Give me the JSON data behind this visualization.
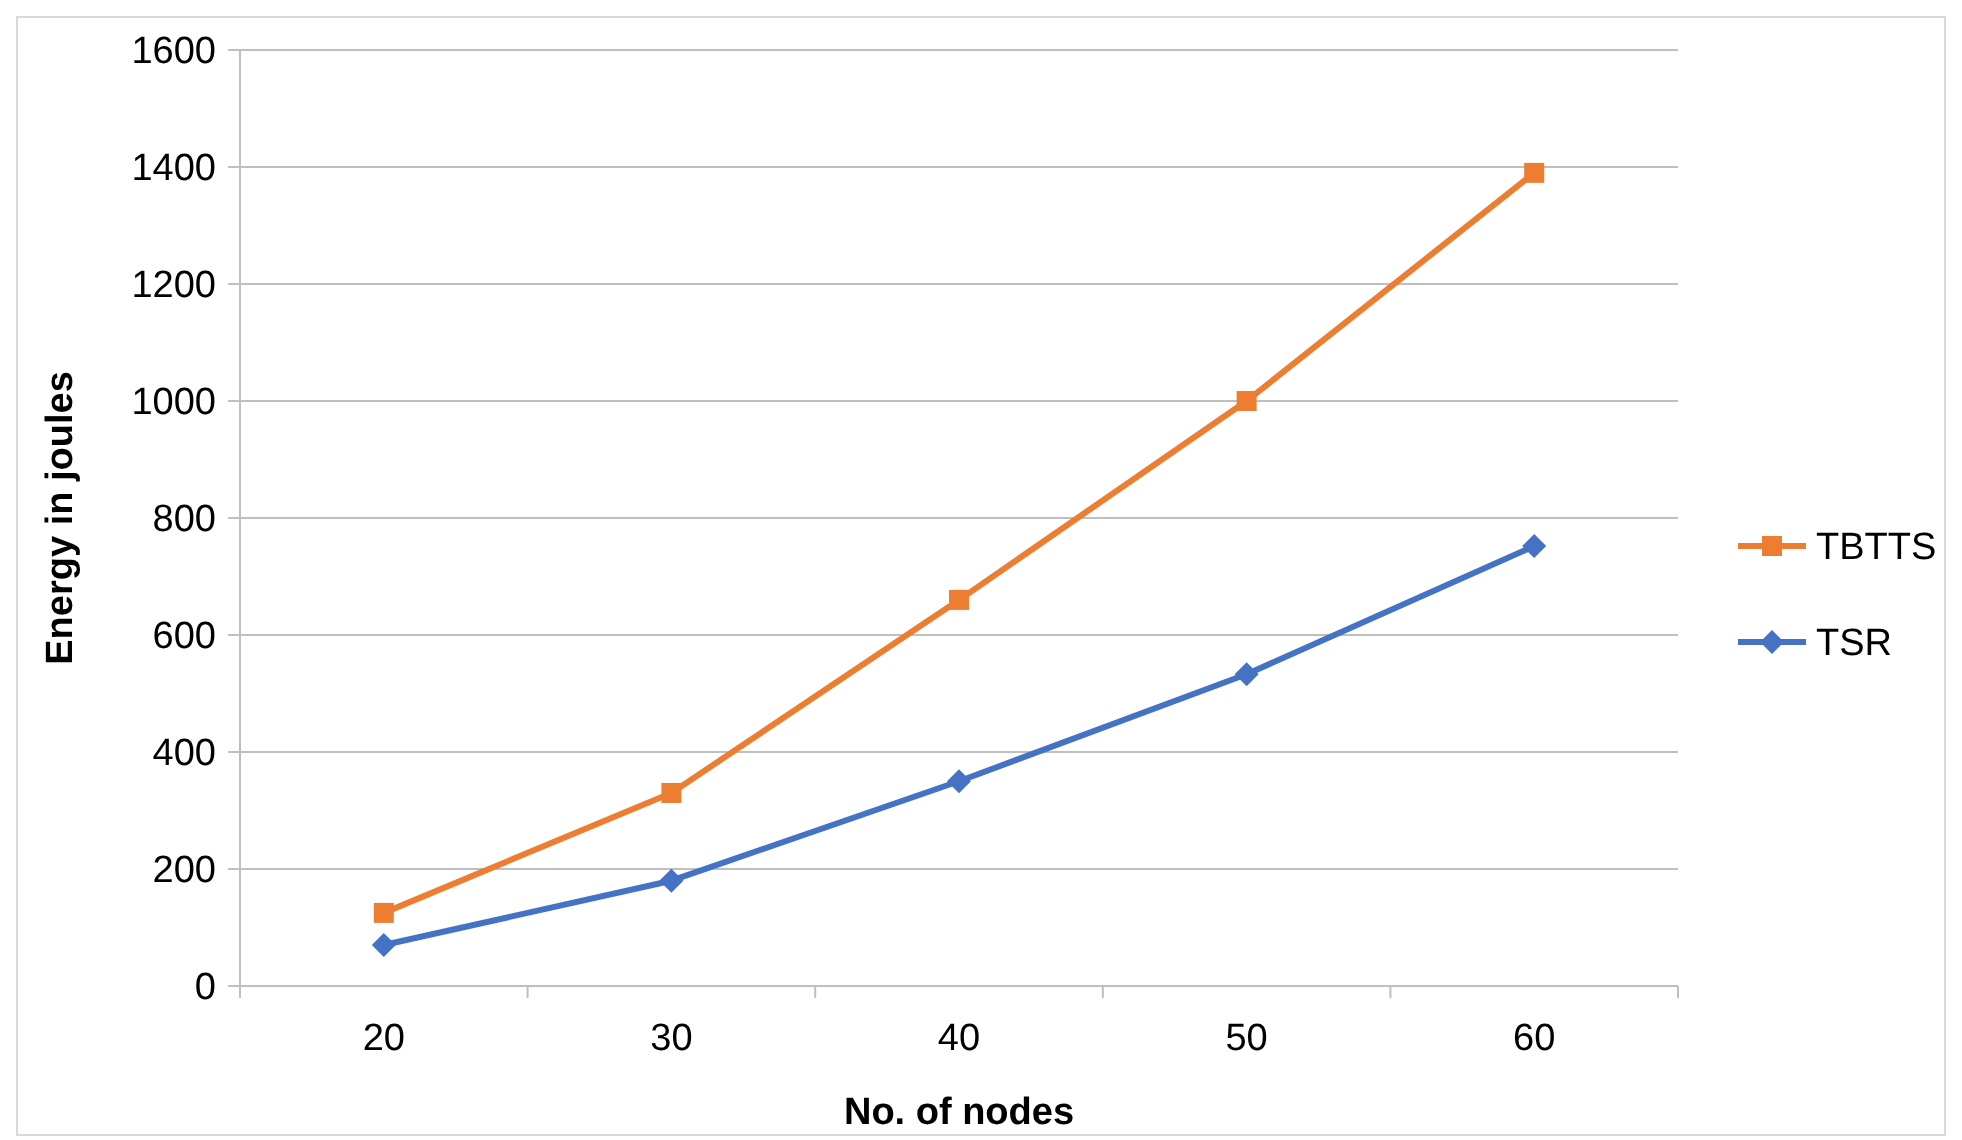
{
  "chart_data": {
    "type": "line",
    "xlabel": "No. of nodes",
    "ylabel": "Energy in joules",
    "categories": [
      "20",
      "30",
      "40",
      "50",
      "60"
    ],
    "series": [
      {
        "name": "TBTTS",
        "color": "#ed7d31",
        "marker": "square",
        "values": [
          125,
          330,
          660,
          1000,
          1390
        ]
      },
      {
        "name": "TSR",
        "color": "#4472c4",
        "marker": "diamond",
        "values": [
          70,
          180,
          350,
          533,
          752
        ]
      }
    ],
    "ylim": [
      0,
      1600
    ],
    "yticks": [
      0,
      200,
      400,
      600,
      800,
      1000,
      1200,
      1400,
      1600
    ],
    "grid": "y",
    "legend": "right",
    "line_style": "solid"
  }
}
